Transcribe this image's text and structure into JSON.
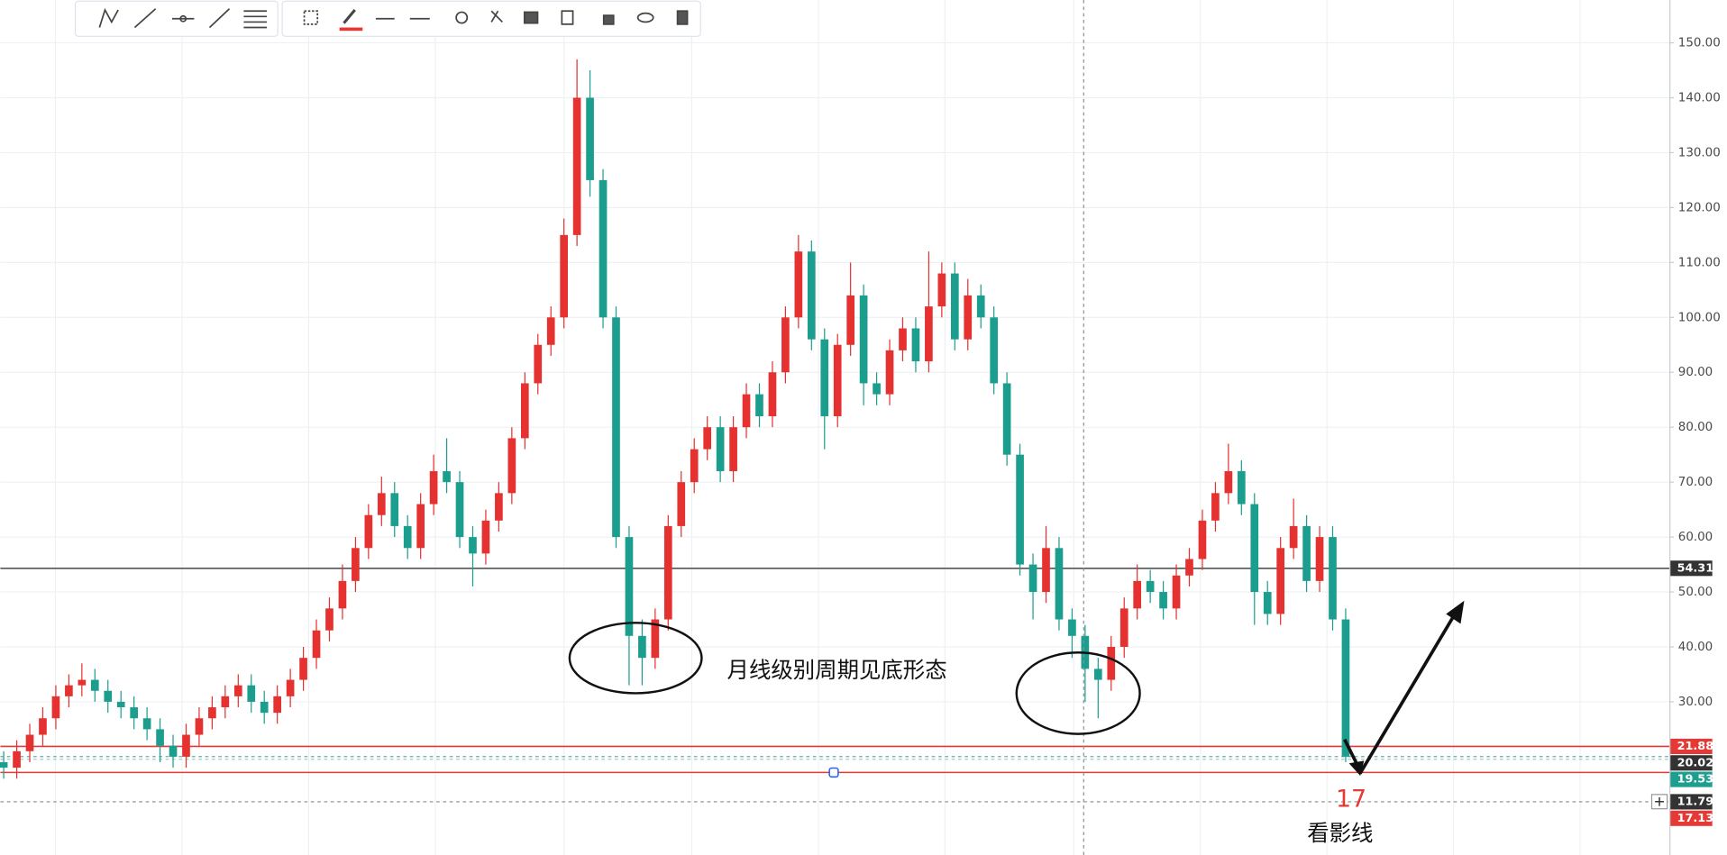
{
  "chart_data": {
    "type": "candlestick",
    "up_color": "#e5312f",
    "down_color": "#1c9e8f",
    "grid": true,
    "ylim": [
      2.1,
      157.8
    ],
    "yticks": [
      {
        "value": 30,
        "label": "30.00"
      },
      {
        "value": 40,
        "label": "40.00"
      },
      {
        "value": 50,
        "label": "50.00"
      },
      {
        "value": 60,
        "label": "60.00"
      },
      {
        "value": 70,
        "label": "70.00"
      },
      {
        "value": 80,
        "label": "80.00"
      },
      {
        "value": 90,
        "label": "90.00"
      },
      {
        "value": 100,
        "label": "100.00"
      },
      {
        "value": 110,
        "label": "110.00"
      },
      {
        "value": 120,
        "label": "120.00"
      },
      {
        "value": 130,
        "label": "130.00"
      },
      {
        "value": 140,
        "label": "140.00"
      },
      {
        "value": 150,
        "label": "150.00"
      }
    ],
    "open": [
      19,
      18,
      21,
      24,
      27,
      31,
      33,
      34,
      32,
      30,
      29,
      27,
      25,
      22,
      20,
      24,
      27,
      29,
      31,
      33,
      30,
      28,
      31,
      34,
      38,
      43,
      47,
      52,
      58,
      64,
      68,
      62,
      58,
      66,
      72,
      70,
      60,
      57,
      63,
      68,
      78,
      88,
      95,
      100,
      115,
      140,
      125,
      100,
      60,
      42,
      38,
      45,
      62,
      70,
      76,
      80,
      72,
      80,
      86,
      82,
      90,
      100,
      112,
      96,
      82,
      95,
      104,
      88,
      86,
      94,
      98,
      92,
      102,
      108,
      96,
      104,
      100,
      88,
      75,
      55,
      50,
      58,
      45,
      42,
      36,
      34,
      40,
      47,
      52,
      50,
      47,
      53,
      56,
      63,
      68,
      72,
      66,
      50,
      46,
      58,
      62,
      52,
      60,
      45
    ],
    "high": [
      21,
      23,
      26,
      29,
      33,
      35,
      37,
      36,
      34,
      32,
      31,
      29,
      27,
      24,
      26,
      29,
      31,
      33,
      35,
      35,
      32,
      33,
      36,
      40,
      45,
      49,
      55,
      60,
      66,
      71,
      70,
      64,
      68,
      75,
      78,
      72,
      62,
      65,
      70,
      80,
      90,
      97,
      102,
      118,
      147,
      145,
      127,
      102,
      62,
      45,
      47,
      64,
      72,
      78,
      82,
      82,
      82,
      88,
      88,
      92,
      102,
      115,
      114,
      98,
      97,
      110,
      106,
      90,
      96,
      100,
      100,
      112,
      110,
      110,
      107,
      106,
      102,
      90,
      77,
      57,
      62,
      60,
      47,
      44,
      38,
      42,
      49,
      55,
      54,
      52,
      55,
      58,
      65,
      70,
      77,
      74,
      68,
      52,
      60,
      67,
      64,
      62,
      62,
      47
    ],
    "low": [
      16,
      16,
      19,
      22,
      25,
      29,
      31,
      30,
      28,
      27,
      25,
      23,
      19,
      18,
      18,
      22,
      25,
      27,
      29,
      28,
      26,
      26,
      29,
      32,
      36,
      41,
      45,
      50,
      56,
      62,
      60,
      56,
      56,
      64,
      68,
      58,
      51,
      55,
      61,
      66,
      76,
      86,
      93,
      98,
      113,
      122,
      98,
      58,
      33,
      33,
      36,
      43,
      60,
      68,
      74,
      70,
      70,
      78,
      80,
      80,
      88,
      98,
      94,
      76,
      80,
      93,
      84,
      84,
      84,
      92,
      90,
      90,
      100,
      94,
      94,
      98,
      86,
      73,
      53,
      45,
      48,
      43,
      38,
      30,
      27,
      32,
      38,
      45,
      48,
      45,
      45,
      51,
      54,
      61,
      66,
      64,
      44,
      44,
      44,
      56,
      50,
      50,
      43,
      19
    ],
    "close": [
      18,
      21,
      24,
      27,
      31,
      33,
      34,
      32,
      30,
      29,
      27,
      25,
      22,
      20,
      24,
      27,
      29,
      31,
      33,
      30,
      28,
      31,
      34,
      38,
      43,
      47,
      52,
      58,
      64,
      68,
      62,
      58,
      66,
      72,
      70,
      60,
      57,
      63,
      68,
      78,
      88,
      95,
      100,
      115,
      140,
      125,
      100,
      60,
      42,
      38,
      45,
      62,
      70,
      76,
      80,
      72,
      80,
      86,
      82,
      90,
      100,
      112,
      96,
      82,
      95,
      104,
      88,
      86,
      94,
      98,
      92,
      102,
      108,
      96,
      104,
      100,
      88,
      75,
      55,
      50,
      58,
      45,
      42,
      36,
      34,
      40,
      47,
      52,
      50,
      47,
      53,
      56,
      63,
      68,
      72,
      66,
      50,
      46,
      58,
      62,
      52,
      60,
      45,
      20
    ],
    "levels": [
      {
        "value": 54.31,
        "color": "#555555",
        "tag_color": "#333333",
        "dash": false
      },
      {
        "value": 21.88,
        "color": "#e53935",
        "tag_color": "#e53935",
        "dash": false
      },
      {
        "value": 20.02,
        "color": "#6aa9a2",
        "tag_color": "#333333",
        "dash": true
      },
      {
        "value": 19.53,
        "color": "#9ccfc9",
        "tag_color": "#1e9e8f",
        "dash": true
      },
      {
        "value": 11.79,
        "color": "#888888",
        "tag_color": "#333333",
        "dash": true
      },
      {
        "value": 17.13,
        "color": "#e53935",
        "tag_color": "#e53935",
        "dash": false
      }
    ],
    "annotations": [
      "月线级别周期见底形态",
      "17",
      "看影线"
    ]
  }
}
